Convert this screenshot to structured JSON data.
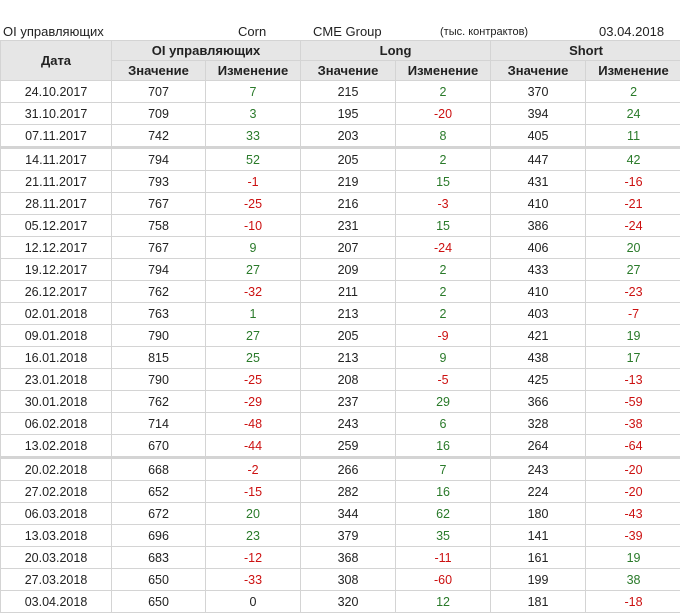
{
  "header": {
    "title": "OI управляющих",
    "commodity": "Corn",
    "exchange": "CME Group",
    "units": "(тыс. контрактов)",
    "date": "03.04.2018"
  },
  "colors": {
    "positive": "#2a7a2a",
    "negative": "#cc1111",
    "header_bg": "#e6e6e6"
  },
  "table": {
    "date_header": "Дата",
    "groups": [
      "OI управляющих",
      "Long",
      "Short"
    ],
    "sub_headers": [
      "Значение",
      "Изменение",
      "Значение",
      "Изменение",
      "Значение",
      "Изменение"
    ],
    "rows": [
      [
        "24.10.2017",
        "707",
        "7",
        "215",
        "2",
        "370",
        "2"
      ],
      [
        "31.10.2017",
        "709",
        "3",
        "195",
        "-20",
        "394",
        "24"
      ],
      [
        "07.11.2017",
        "742",
        "33",
        "203",
        "8",
        "405",
        "11"
      ],
      [
        "14.11.2017",
        "794",
        "52",
        "205",
        "2",
        "447",
        "42"
      ],
      [
        "21.11.2017",
        "793",
        "-1",
        "219",
        "15",
        "431",
        "-16"
      ],
      [
        "28.11.2017",
        "767",
        "-25",
        "216",
        "-3",
        "410",
        "-21"
      ],
      [
        "05.12.2017",
        "758",
        "-10",
        "231",
        "15",
        "386",
        "-24"
      ],
      [
        "12.12.2017",
        "767",
        "9",
        "207",
        "-24",
        "406",
        "20"
      ],
      [
        "19.12.2017",
        "794",
        "27",
        "209",
        "2",
        "433",
        "27"
      ],
      [
        "26.12.2017",
        "762",
        "-32",
        "211",
        "2",
        "410",
        "-23"
      ],
      [
        "02.01.2018",
        "763",
        "1",
        "213",
        "2",
        "403",
        "-7"
      ],
      [
        "09.01.2018",
        "790",
        "27",
        "205",
        "-9",
        "421",
        "19"
      ],
      [
        "16.01.2018",
        "815",
        "25",
        "213",
        "9",
        "438",
        "17"
      ],
      [
        "23.01.2018",
        "790",
        "-25",
        "208",
        "-5",
        "425",
        "-13"
      ],
      [
        "30.01.2018",
        "762",
        "-29",
        "237",
        "29",
        "366",
        "-59"
      ],
      [
        "06.02.2018",
        "714",
        "-48",
        "243",
        "6",
        "328",
        "-38"
      ],
      [
        "13.02.2018",
        "670",
        "-44",
        "259",
        "16",
        "264",
        "-64"
      ],
      [
        "20.02.2018",
        "668",
        "-2",
        "266",
        "7",
        "243",
        "-20"
      ],
      [
        "27.02.2018",
        "652",
        "-15",
        "282",
        "16",
        "224",
        "-20"
      ],
      [
        "06.03.2018",
        "672",
        "20",
        "344",
        "62",
        "180",
        "-43"
      ],
      [
        "13.03.2018",
        "696",
        "23",
        "379",
        "35",
        "141",
        "-39"
      ],
      [
        "20.03.2018",
        "683",
        "-12",
        "368",
        "-11",
        "161",
        "19"
      ],
      [
        "27.03.2018",
        "650",
        "-33",
        "308",
        "-60",
        "199",
        "38"
      ],
      [
        "03.04.2018",
        "650",
        "0",
        "320",
        "12",
        "181",
        "-18"
      ]
    ]
  }
}
